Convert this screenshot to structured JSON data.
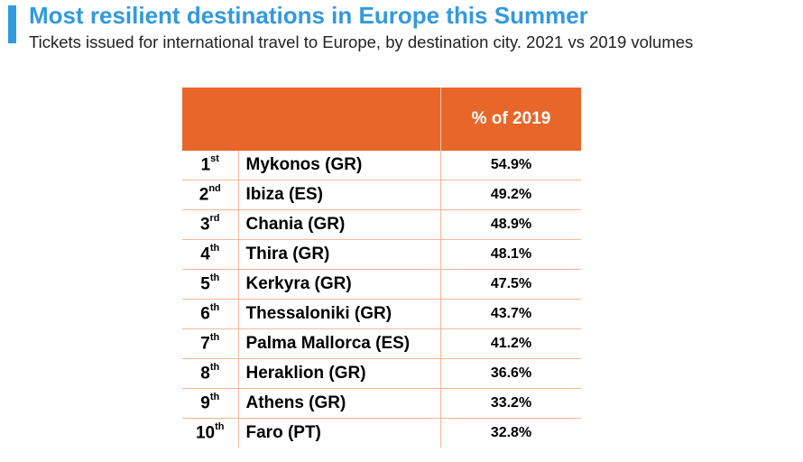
{
  "title": "Most resilient destinations in Europe this Summer",
  "subtitle": "Tickets issued for international travel to Europe, by destination city. 2021 vs 2019 volumes",
  "colors": {
    "accent": "#3399dd",
    "header": "#e8662a",
    "grid": "#f3b898"
  },
  "table": {
    "header": {
      "rank": "",
      "city": "",
      "pct": "% of 2019"
    },
    "rows": [
      {
        "rank": "1",
        "suffix": "st",
        "city": "Mykonos (GR)",
        "pct": "54.9%"
      },
      {
        "rank": "2",
        "suffix": "nd",
        "city": "Ibiza (ES)",
        "pct": "49.2%"
      },
      {
        "rank": "3",
        "suffix": "rd",
        "city": "Chania (GR)",
        "pct": "48.9%"
      },
      {
        "rank": "4",
        "suffix": "th",
        "city": "Thira (GR)",
        "pct": "48.1%"
      },
      {
        "rank": "5",
        "suffix": "th",
        "city": "Kerkyra (GR)",
        "pct": "47.5%"
      },
      {
        "rank": "6",
        "suffix": "th",
        "city": "Thessaloniki (GR)",
        "pct": "43.7%"
      },
      {
        "rank": "7",
        "suffix": "th",
        "city": "Palma Mallorca (ES)",
        "pct": "41.2%"
      },
      {
        "rank": "8",
        "suffix": "th",
        "city": "Heraklion (GR)",
        "pct": "36.6%"
      },
      {
        "rank": "9",
        "suffix": "th",
        "city": "Athens (GR)",
        "pct": "33.2%"
      },
      {
        "rank": "10",
        "suffix": "th",
        "city": "Faro (PT)",
        "pct": "32.8%"
      }
    ]
  },
  "chart_data": {
    "type": "table",
    "title": "Most resilient destinations in Europe this Summer",
    "subtitle": "Tickets issued for international travel to Europe, by destination city. 2021 vs 2019 volumes",
    "columns": [
      "",
      "",
      "% of 2019"
    ],
    "categories": [
      "Mykonos (GR)",
      "Ibiza (ES)",
      "Chania (GR)",
      "Thira (GR)",
      "Kerkyra (GR)",
      "Thessaloniki (GR)",
      "Palma Mallorca (ES)",
      "Heraklion (GR)",
      "Athens (GR)",
      "Faro (PT)"
    ],
    "values": [
      54.9,
      49.2,
      48.9,
      48.1,
      47.5,
      43.7,
      41.2,
      36.6,
      33.2,
      32.8
    ]
  }
}
